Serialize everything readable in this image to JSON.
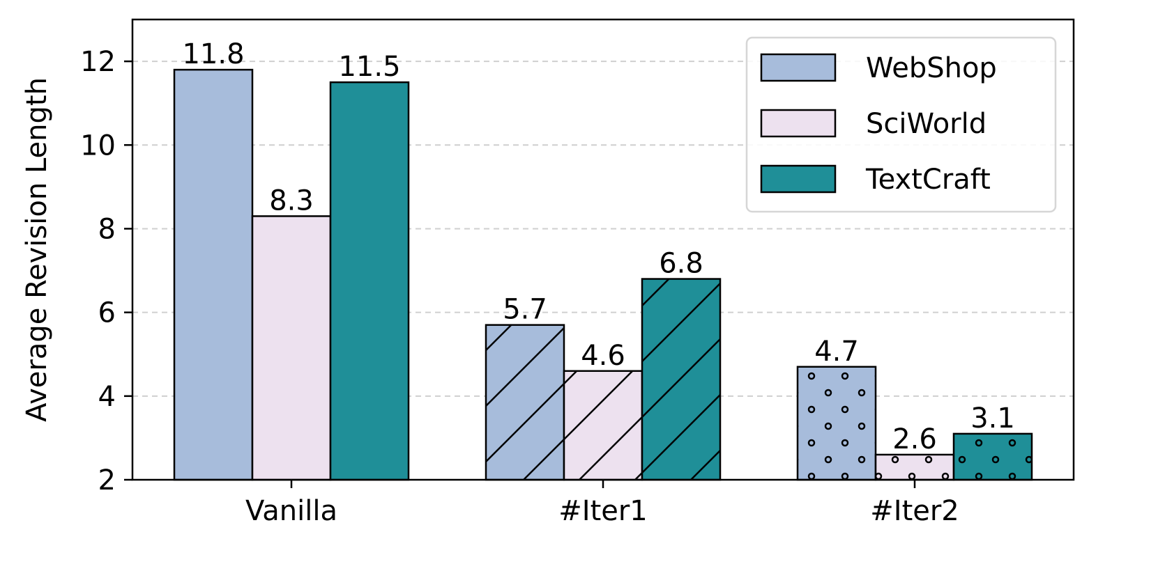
{
  "chart_data": {
    "type": "bar",
    "ylabel": "Average Revision Length",
    "ylim": [
      2,
      13
    ],
    "yticks": [
      2,
      4,
      6,
      8,
      10,
      12
    ],
    "categories": [
      "Vanilla",
      "#Iter1",
      "#Iter2"
    ],
    "category_hatch": [
      "none",
      "diagonal",
      "dots"
    ],
    "grid": "y-dashed",
    "legend_position": "top-right",
    "series": [
      {
        "name": "WebShop",
        "color": "#a7bcdb",
        "values": [
          11.8,
          5.7,
          4.7
        ],
        "labels": [
          "11.8",
          "5.7",
          "4.7"
        ]
      },
      {
        "name": "SciWorld",
        "color": "#ede1ef",
        "values": [
          8.3,
          4.6,
          2.6
        ],
        "labels": [
          "8.3",
          "4.6",
          "2.6"
        ]
      },
      {
        "name": "TextCraft",
        "color": "#1f8f98",
        "values": [
          11.5,
          6.8,
          3.1
        ],
        "labels": [
          "11.5",
          "6.8",
          "3.1"
        ]
      }
    ]
  }
}
